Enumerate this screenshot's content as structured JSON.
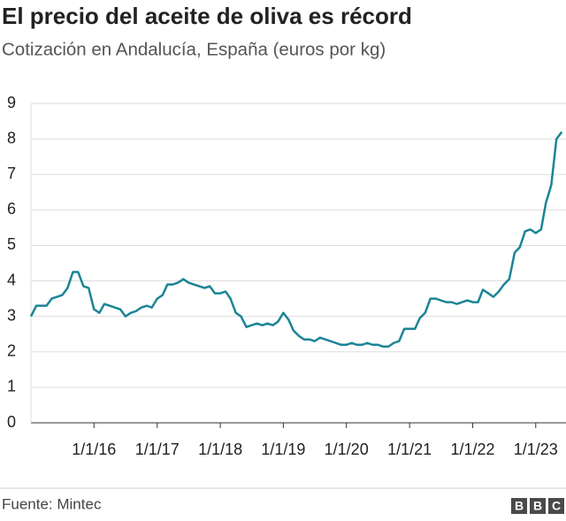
{
  "chart_data": {
    "type": "line",
    "title": "El precio del aceite de oliva es récord",
    "subtitle": "Cotización en Andalucía, España (euros por kg)",
    "source": "Fuente: Mintec",
    "logo": [
      "B",
      "B",
      "C"
    ],
    "x": [
      "2015-01-01",
      "2015-02-01",
      "2015-03-01",
      "2015-04-01",
      "2015-05-01",
      "2015-06-01",
      "2015-07-01",
      "2015-08-01",
      "2015-09-01",
      "2015-10-01",
      "2015-11-01",
      "2015-12-01",
      "2016-01-01",
      "2016-02-01",
      "2016-03-01",
      "2016-04-01",
      "2016-05-01",
      "2016-06-01",
      "2016-07-01",
      "2016-08-01",
      "2016-09-01",
      "2016-10-01",
      "2016-11-01",
      "2016-12-01",
      "2017-01-01",
      "2017-02-01",
      "2017-03-01",
      "2017-04-01",
      "2017-05-01",
      "2017-06-01",
      "2017-07-01",
      "2017-08-01",
      "2017-09-01",
      "2017-10-01",
      "2017-11-01",
      "2017-12-01",
      "2018-01-01",
      "2018-02-01",
      "2018-03-01",
      "2018-04-01",
      "2018-05-01",
      "2018-06-01",
      "2018-07-01",
      "2018-08-01",
      "2018-09-01",
      "2018-10-01",
      "2018-11-01",
      "2018-12-01",
      "2019-01-01",
      "2019-02-01",
      "2019-03-01",
      "2019-04-01",
      "2019-05-01",
      "2019-06-01",
      "2019-07-01",
      "2019-08-01",
      "2019-09-01",
      "2019-10-01",
      "2019-11-01",
      "2019-12-01",
      "2020-01-01",
      "2020-02-01",
      "2020-03-01",
      "2020-04-01",
      "2020-05-01",
      "2020-06-01",
      "2020-07-01",
      "2020-08-01",
      "2020-09-01",
      "2020-10-01",
      "2020-11-01",
      "2020-12-01",
      "2021-01-01",
      "2021-02-01",
      "2021-03-01",
      "2021-04-01",
      "2021-05-01",
      "2021-06-01",
      "2021-07-01",
      "2021-08-01",
      "2021-09-01",
      "2021-10-01",
      "2021-11-01",
      "2021-12-01",
      "2022-01-01",
      "2022-02-01",
      "2022-03-01",
      "2022-04-01",
      "2022-05-01",
      "2022-06-01",
      "2022-07-01",
      "2022-08-01",
      "2022-09-01",
      "2022-10-01",
      "2022-11-01",
      "2022-12-01",
      "2023-01-01",
      "2023-02-01",
      "2023-03-01",
      "2023-04-01",
      "2023-05-01",
      "2023-06-01"
    ],
    "series": [
      {
        "name": "Aceite de oliva",
        "color": "#1b8496",
        "values": [
          3.0,
          3.3,
          3.3,
          3.3,
          3.5,
          3.55,
          3.6,
          3.8,
          4.25,
          4.25,
          3.85,
          3.8,
          3.2,
          3.1,
          3.35,
          3.3,
          3.25,
          3.2,
          3.0,
          3.1,
          3.15,
          3.25,
          3.3,
          3.25,
          3.5,
          3.6,
          3.9,
          3.9,
          3.95,
          4.05,
          3.95,
          3.9,
          3.85,
          3.8,
          3.85,
          3.65,
          3.65,
          3.7,
          3.5,
          3.1,
          3.0,
          2.7,
          2.75,
          2.8,
          2.75,
          2.8,
          2.75,
          2.85,
          3.1,
          2.9,
          2.6,
          2.45,
          2.35,
          2.35,
          2.3,
          2.4,
          2.35,
          2.3,
          2.25,
          2.2,
          2.2,
          2.25,
          2.2,
          2.2,
          2.25,
          2.2,
          2.2,
          2.15,
          2.15,
          2.25,
          2.3,
          2.65,
          2.65,
          2.65,
          2.95,
          3.1,
          3.5,
          3.5,
          3.45,
          3.4,
          3.4,
          3.35,
          3.4,
          3.45,
          3.4,
          3.4,
          3.75,
          3.65,
          3.55,
          3.7,
          3.9,
          4.05,
          4.8,
          4.95,
          5.4,
          5.45,
          5.35,
          5.45,
          6.2,
          6.7,
          8.0,
          8.2
        ]
      }
    ],
    "xlim": [
      "2015-01-01",
      "2023-06-15"
    ],
    "xticks": [
      {
        "value": "2016-01-01",
        "label": "1/1/16"
      },
      {
        "value": "2017-01-01",
        "label": "1/1/17"
      },
      {
        "value": "2018-01-01",
        "label": "1/1/18"
      },
      {
        "value": "2019-01-01",
        "label": "1/1/19"
      },
      {
        "value": "2020-01-01",
        "label": "1/1/20"
      },
      {
        "value": "2021-01-01",
        "label": "1/1/21"
      },
      {
        "value": "2022-01-01",
        "label": "1/1/22"
      },
      {
        "value": "2023-01-01",
        "label": "1/1/23"
      }
    ],
    "ylim": [
      0,
      9
    ],
    "yticks": [
      0,
      1,
      2,
      3,
      4,
      5,
      6,
      7,
      8,
      9
    ],
    "grid": true
  }
}
